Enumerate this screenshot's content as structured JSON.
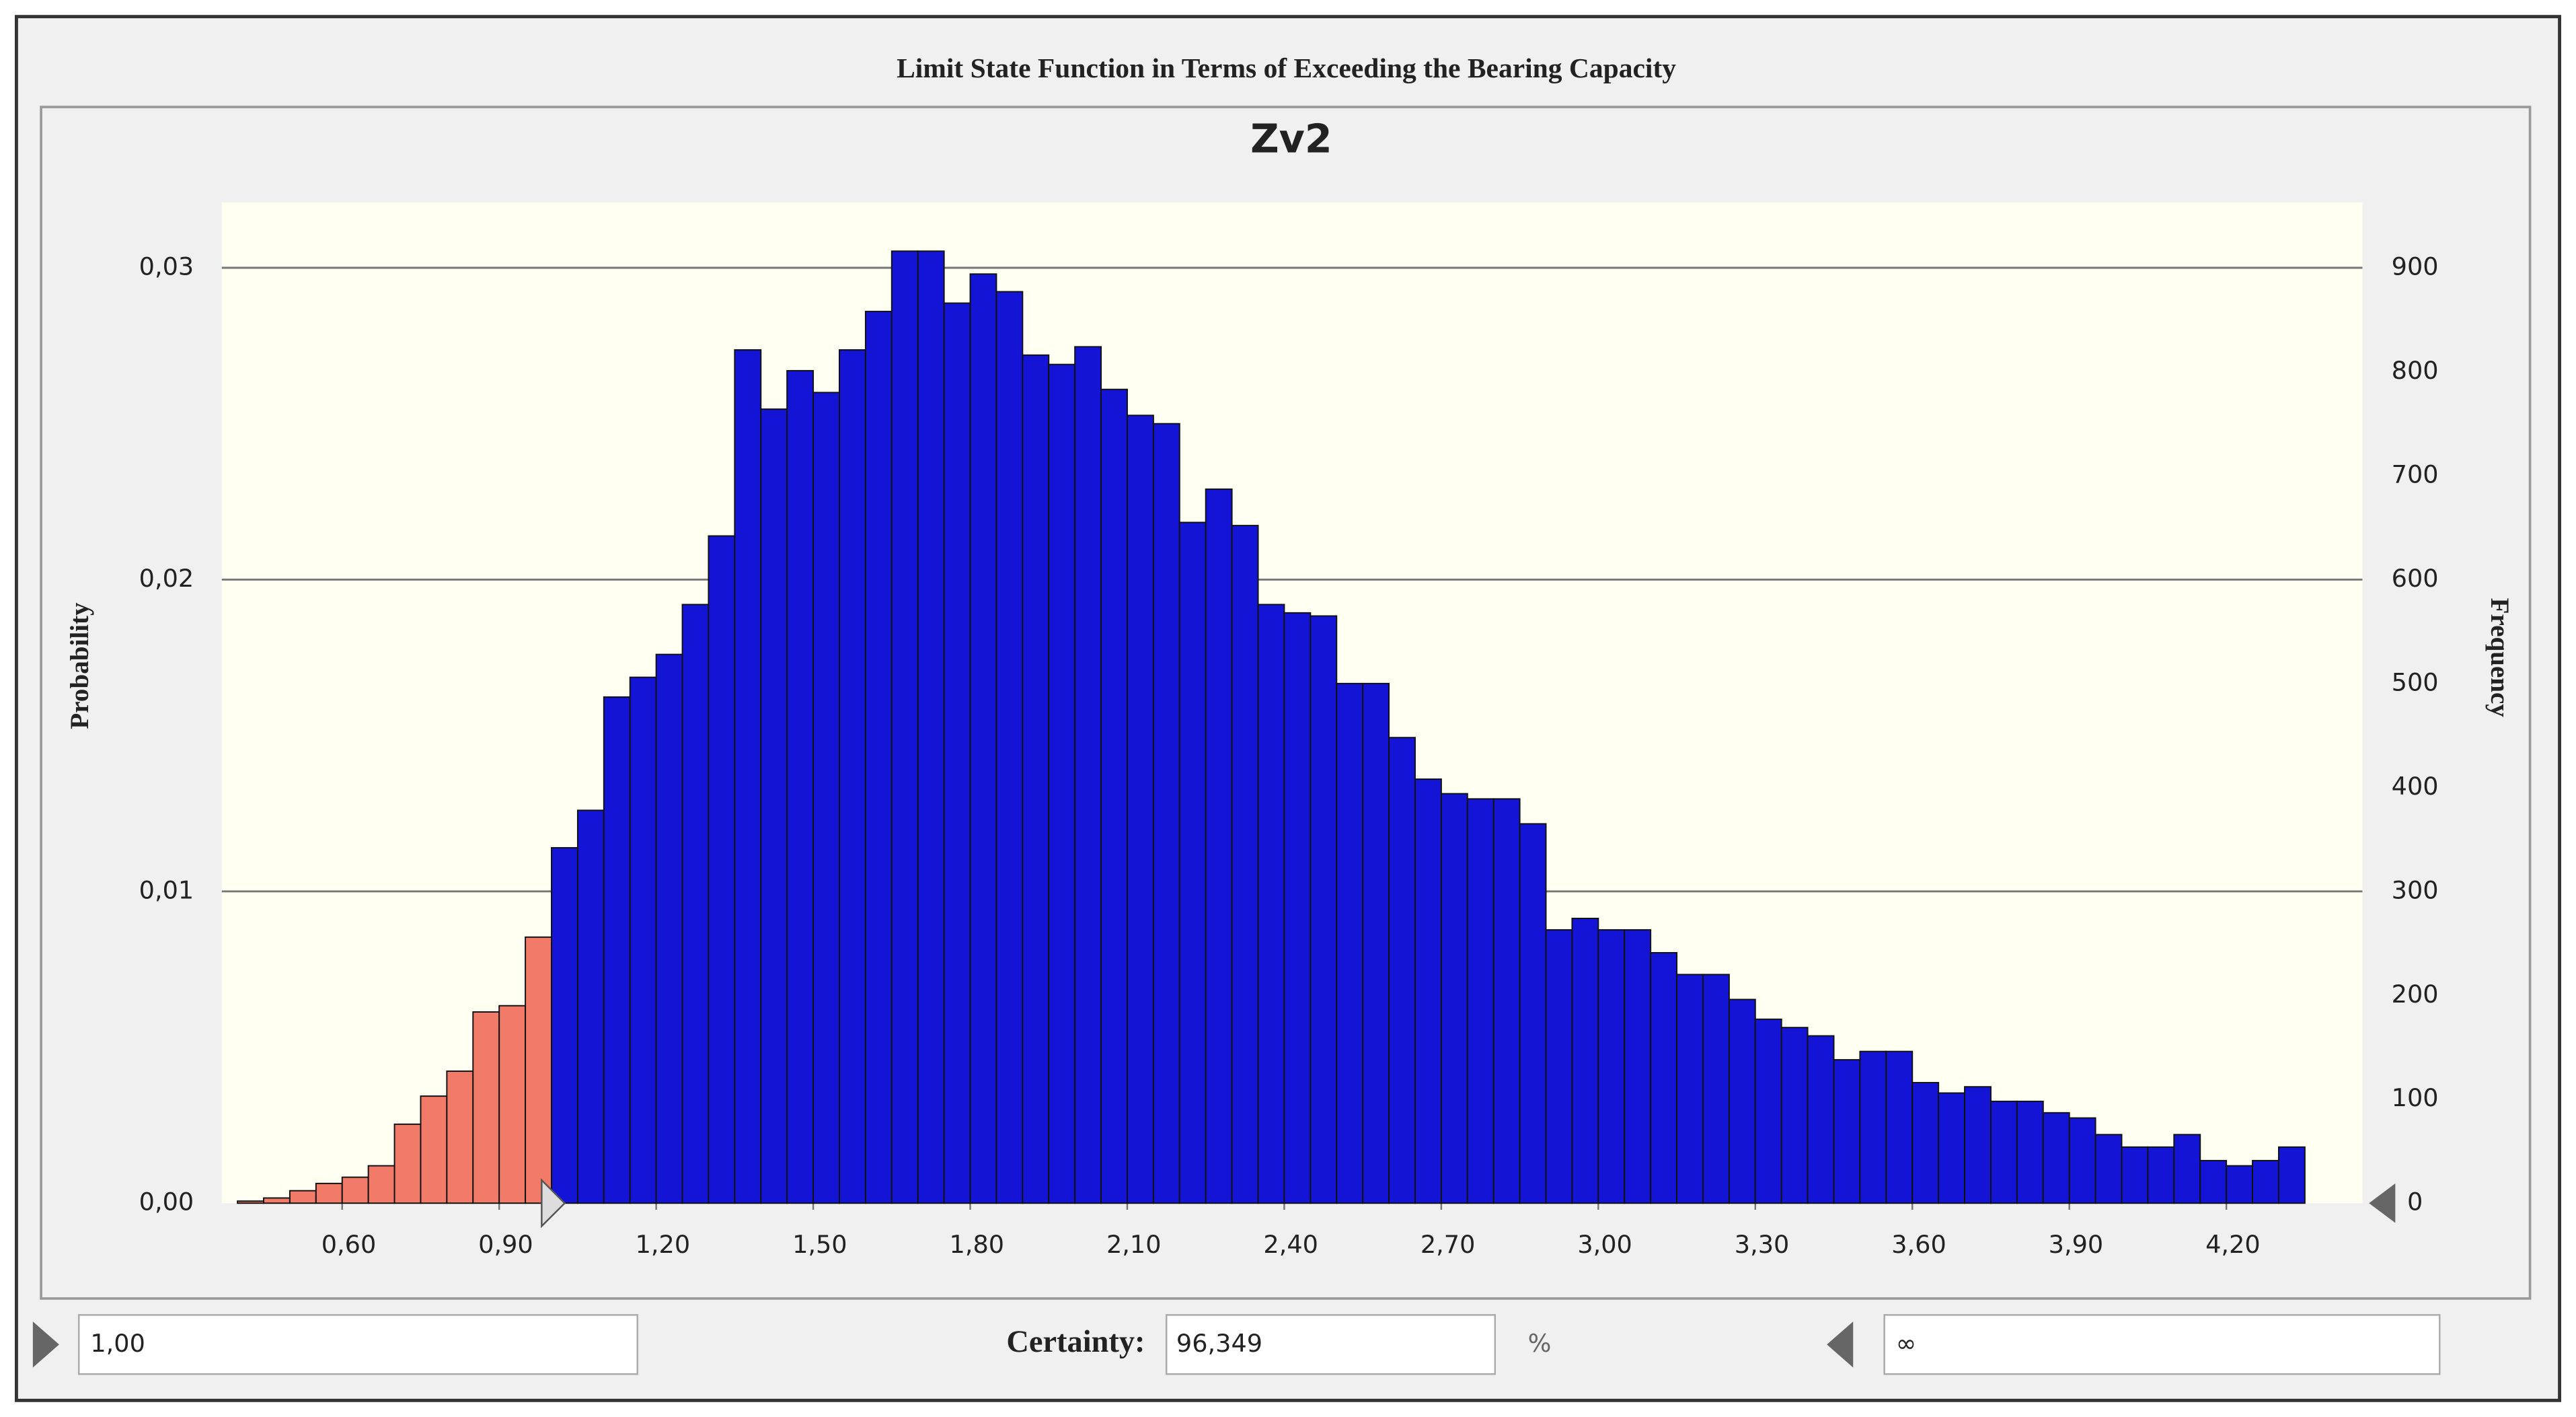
{
  "window_title": "Limit State Function in Terms of Exceeding the Bearing Capacity",
  "chart_data": {
    "type": "histogram",
    "title": "Zv2",
    "y_label": "Probability",
    "y2_label": "Frequency",
    "bins": [
      0.4,
      0.45,
      0.5,
      0.55,
      0.6,
      0.65,
      0.7,
      0.75,
      0.8,
      0.85,
      0.9,
      0.95,
      1.0,
      1.05,
      1.1,
      1.15,
      1.2,
      1.25,
      1.3,
      1.35,
      1.4,
      1.45,
      1.5,
      1.55,
      1.6,
      1.65,
      1.7,
      1.75,
      1.8,
      1.85,
      1.9,
      1.95,
      2.0,
      2.05,
      2.1,
      2.15,
      2.2,
      2.25,
      2.3,
      2.35,
      2.4,
      2.45,
      2.5,
      2.55,
      2.6,
      2.65,
      2.7,
      2.75,
      2.8,
      2.85,
      2.9,
      2.95,
      3.0,
      3.05,
      3.1,
      3.15,
      3.2,
      3.25,
      3.3,
      3.35,
      3.4,
      3.45,
      3.5,
      3.55,
      3.6,
      3.65,
      3.7,
      3.75,
      3.8,
      3.85,
      3.9,
      3.95,
      4.0,
      4.05,
      4.1,
      4.15,
      4.2,
      4.25,
      4.3,
      4.35
    ],
    "series": [
      {
        "axis": "y2",
        "color": "#1414d6",
        "outside_color": "#f27a68",
        "values": [
          2,
          5,
          12,
          19,
          25,
          36,
          76,
          103,
          127,
          184,
          190,
          256,
          342,
          378,
          487,
          506,
          528,
          576,
          642,
          821,
          764,
          801,
          780,
          821,
          858,
          916,
          916,
          866,
          894,
          877,
          816,
          807,
          824,
          783,
          758,
          750,
          655,
          687,
          652,
          576,
          568,
          565,
          500,
          500,
          448,
          408,
          394,
          389,
          389,
          365,
          263,
          274,
          263,
          263,
          241,
          220,
          220,
          196,
          177,
          169,
          161,
          138,
          146,
          146,
          116,
          106,
          112,
          98,
          98,
          87,
          82,
          66,
          54,
          54,
          66,
          41,
          36,
          41,
          54
        ]
      }
    ],
    "xlim": [
      0.37,
      4.46
    ],
    "xticks": [
      {
        "value": 0.6,
        "label": "0,60"
      },
      {
        "value": 0.9,
        "label": "0,90"
      },
      {
        "value": 1.2,
        "label": "1,20"
      },
      {
        "value": 1.5,
        "label": "1,50"
      },
      {
        "value": 1.8,
        "label": "1,80"
      },
      {
        "value": 2.1,
        "label": "2,10"
      },
      {
        "value": 2.4,
        "label": "2,40"
      },
      {
        "value": 2.7,
        "label": "2,70"
      },
      {
        "value": 3.0,
        "label": "3,00"
      },
      {
        "value": 3.3,
        "label": "3,30"
      },
      {
        "value": 3.6,
        "label": "3,60"
      },
      {
        "value": 3.9,
        "label": "3,90"
      },
      {
        "value": 4.2,
        "label": "4,20"
      }
    ],
    "ylim": [
      0,
      0.0321
    ],
    "yticks": [
      {
        "value": 0,
        "label": "0,00"
      },
      {
        "value": 0.01,
        "label": "0,01"
      },
      {
        "value": 0.02,
        "label": "0,02"
      },
      {
        "value": 0.03,
        "label": "0,03"
      }
    ],
    "y2lim": [
      0,
      963
    ],
    "y2ticks": [
      0,
      100,
      200,
      300,
      400,
      500,
      600,
      700,
      800,
      900
    ],
    "grid": true
  },
  "certainty": {
    "lower": {
      "value": 1.0,
      "label": "1,00"
    },
    "label": "Certainty:",
    "value": "96,349",
    "unit": "%",
    "upper": "∞"
  }
}
